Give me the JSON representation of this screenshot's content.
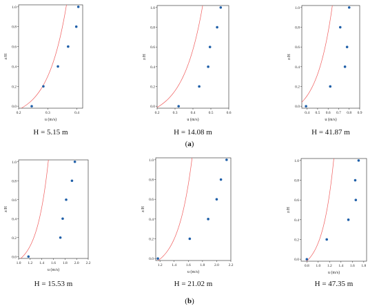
{
  "figure": {
    "row_labels": [
      {
        "pre": "(",
        "letter": "a",
        "post": ")"
      },
      {
        "pre": "(",
        "letter": "b",
        "post": ")"
      }
    ]
  },
  "colors": {
    "points": "#1f5fa8",
    "curve": "#f05a5a",
    "axis": "#222222"
  },
  "chart_data": [
    {
      "type": "scatter",
      "caption": "H = 5.15 m",
      "xlabel": "u (m/s)",
      "ylabel": "z/H",
      "xlim": [
        0.2,
        0.42
      ],
      "ylim": [
        -0.02,
        1.02
      ],
      "xticks": [
        "0.2",
        "0.3",
        "0.4"
      ],
      "yticks": [
        "0.0",
        "0.2",
        "0.4",
        "0.6",
        "0.8",
        "1.0"
      ],
      "x": [
        0.245,
        0.285,
        0.335,
        0.37,
        0.398,
        0.405
      ],
      "y": [
        0.0,
        0.2,
        0.4,
        0.6,
        0.8,
        1.0
      ],
      "fit": {
        "model": "exponential",
        "u0": 0.194,
        "k": 0.065
      }
    },
    {
      "type": "scatter",
      "caption": "H = 14.08 m",
      "xlabel": "u (m/s)",
      "ylabel": "z/H",
      "xlim": [
        0.2,
        0.6
      ],
      "ylim": [
        -0.02,
        1.02
      ],
      "xticks": [
        "0.2",
        "0.3",
        "0.4",
        "0.5",
        "0.6"
      ],
      "yticks": [
        "0.0",
        "0.2",
        "0.4",
        "0.6",
        "0.8",
        "1.0"
      ],
      "x": [
        0.32,
        0.435,
        0.485,
        0.495,
        0.535,
        0.555
      ],
      "y": [
        0.0,
        0.2,
        0.4,
        0.6,
        0.8,
        1.0
      ],
      "fit": {
        "model": "exponential",
        "u0": 0.166,
        "k": 0.11
      }
    },
    {
      "type": "scatter",
      "caption": "H = 41.87 m",
      "xlabel": "u (m/s)",
      "ylabel": "z/H",
      "xlim": [
        0.35,
        0.9
      ],
      "ylim": [
        -0.02,
        1.02
      ],
      "xticks": [
        "0.4",
        "0.5",
        "0.6",
        "0.7",
        "0.8",
        "0.9"
      ],
      "yticks": [
        "0.0",
        "0.2",
        "0.4",
        "0.6",
        "0.8",
        "1.0"
      ],
      "x": [
        0.39,
        0.62,
        0.76,
        0.78,
        0.715,
        0.8
      ],
      "y": [
        0.0,
        0.2,
        0.4,
        0.6,
        0.8,
        1.0
      ],
      "fit": {
        "model": "exponential",
        "u0": 0.247,
        "k": 0.15
      }
    },
    {
      "type": "scatter",
      "caption": "H = 15.53 m",
      "xlabel": "u (m/s)",
      "ylabel": "z/H",
      "xlim": [
        1.0,
        2.2
      ],
      "ylim": [
        -0.02,
        1.02
      ],
      "xticks": [
        "1.0",
        "1.2",
        "1.4",
        "1.6",
        "1.8",
        "2.0",
        "2.2"
      ],
      "yticks": [
        "0.0",
        "0.2",
        "0.4",
        "0.6",
        "0.8",
        "1.0"
      ],
      "x": [
        1.17,
        1.72,
        1.76,
        1.82,
        1.92,
        1.97
      ],
      "y": [
        0.0,
        0.2,
        0.4,
        0.6,
        0.8,
        1.0
      ],
      "fit": {
        "model": "exponential",
        "u0": 0.99,
        "k": 0.2
      }
    },
    {
      "type": "scatter",
      "caption": "H = 21.02 m",
      "xlabel": "u (m/s)",
      "ylabel": "z/H",
      "xlim": [
        1.14,
        2.2
      ],
      "ylim": [
        -0.02,
        1.02
      ],
      "xticks": [
        "1.2",
        "1.4",
        "1.6",
        "1.8",
        "2.0",
        "2.2"
      ],
      "yticks": [
        "0.0",
        "0.2",
        "0.4",
        "0.6",
        "0.8",
        "1.0"
      ],
      "x": [
        1.17,
        1.62,
        1.88,
        2.0,
        2.06,
        2.14
      ],
      "y": [
        0.0,
        0.2,
        0.4,
        0.6,
        0.8,
        1.0
      ],
      "fit": {
        "model": "exponential",
        "u0": 1.129,
        "k": 0.2
      }
    },
    {
      "type": "scatter",
      "caption": "H = 47.35 m",
      "xlabel": "u (m/s)",
      "ylabel": "z/H",
      "xlim": [
        0.7,
        1.85
      ],
      "ylim": [
        -0.02,
        1.02
      ],
      "xticks": [
        "0.8",
        "1.0",
        "1.2",
        "1.4",
        "1.6",
        "1.8"
      ],
      "yticks": [
        "0.0",
        "0.2",
        "0.4",
        "0.6",
        "0.8",
        "1.0"
      ],
      "x": [
        0.8,
        1.15,
        1.53,
        1.66,
        1.65,
        1.71
      ],
      "y": [
        0.0,
        0.2,
        0.4,
        0.6,
        0.8,
        1.0
      ],
      "fit": {
        "model": "exponential",
        "u0": 0.75,
        "k": 0.2
      }
    }
  ]
}
